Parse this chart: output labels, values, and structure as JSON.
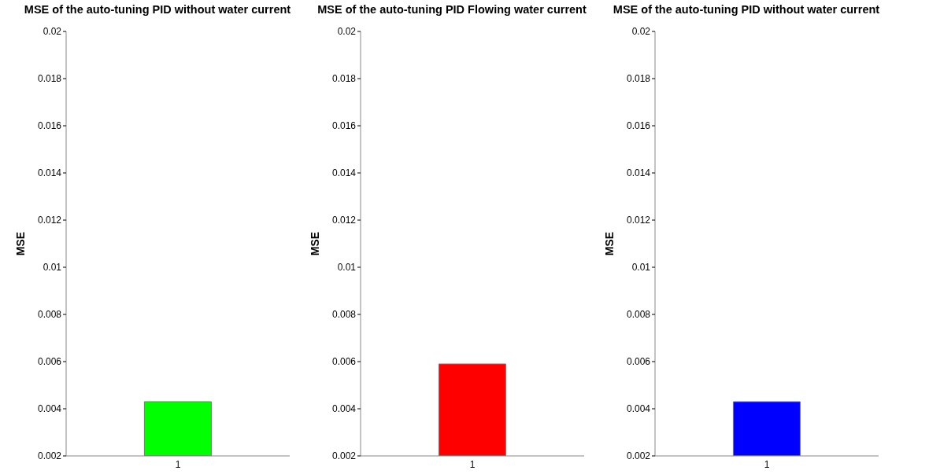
{
  "chart_data": [
    {
      "type": "bar",
      "title": "MSE of the auto-tuning  PID without water current",
      "ylabel": "MSE",
      "categories": [
        "1"
      ],
      "values": [
        0.0043
      ],
      "color": "#00ff00",
      "ylim": [
        0.002,
        0.02
      ],
      "yticks": [
        0.002,
        0.004,
        0.006,
        0.008,
        0.01,
        0.012,
        0.014,
        0.016,
        0.018,
        0.02
      ],
      "grid": false
    },
    {
      "type": "bar",
      "title": "MSE of the auto-tuning  PID Flowing water current",
      "ylabel": "MSE",
      "categories": [
        "1"
      ],
      "values": [
        0.0059
      ],
      "color": "#ff0000",
      "ylim": [
        0.002,
        0.02
      ],
      "yticks": [
        0.002,
        0.004,
        0.006,
        0.008,
        0.01,
        0.012,
        0.014,
        0.016,
        0.018,
        0.02
      ],
      "grid": false
    },
    {
      "type": "bar",
      "title": "MSE of the auto-tuning  PID without water current",
      "ylabel": "MSE",
      "categories": [
        "1"
      ],
      "values": [
        0.0043
      ],
      "color": "#0000ff",
      "ylim": [
        0.002,
        0.02
      ],
      "yticks": [
        0.002,
        0.004,
        0.006,
        0.008,
        0.01,
        0.012,
        0.014,
        0.016,
        0.018,
        0.02
      ],
      "grid": false
    }
  ]
}
